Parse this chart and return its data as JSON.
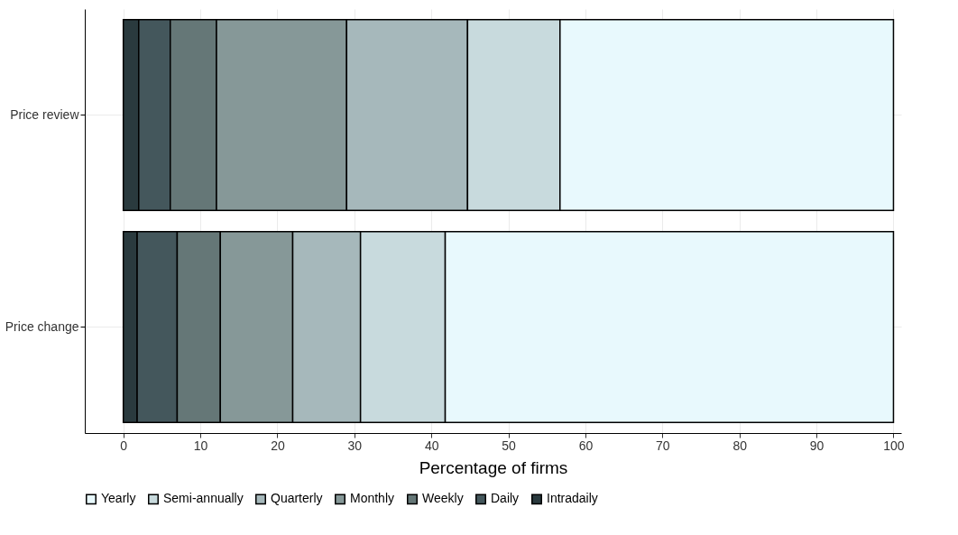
{
  "chart_data": {
    "type": "bar",
    "orientation": "horizontal",
    "stacked": true,
    "xlabel": "Percentage of firms",
    "categories": [
      "Price review",
      "Price change"
    ],
    "series": [
      {
        "name": "Intradaily",
        "color": "#2a3a3e",
        "values": [
          2.0,
          1.8
        ]
      },
      {
        "name": "Daily",
        "color": "#44575c",
        "values": [
          4.1,
          5.2
        ]
      },
      {
        "name": "Weekly",
        "color": "#657777",
        "values": [
          6.0,
          5.6
        ]
      },
      {
        "name": "Monthly",
        "color": "#869898",
        "values": [
          16.9,
          9.4
        ]
      },
      {
        "name": "Quarterly",
        "color": "#a6b8bb",
        "values": [
          15.7,
          8.8
        ]
      },
      {
        "name": "Semi-annually",
        "color": "#c8dadd",
        "values": [
          12.0,
          11.0
        ]
      },
      {
        "name": "Yearly",
        "color": "#e8f9fd",
        "values": [
          43.3,
          58.2
        ]
      }
    ],
    "xlim": [
      -5,
      101
    ],
    "xticks": [
      0,
      10,
      20,
      30,
      40,
      50,
      60,
      70,
      80,
      90,
      100
    ],
    "grid": true,
    "legend": "bottom"
  }
}
